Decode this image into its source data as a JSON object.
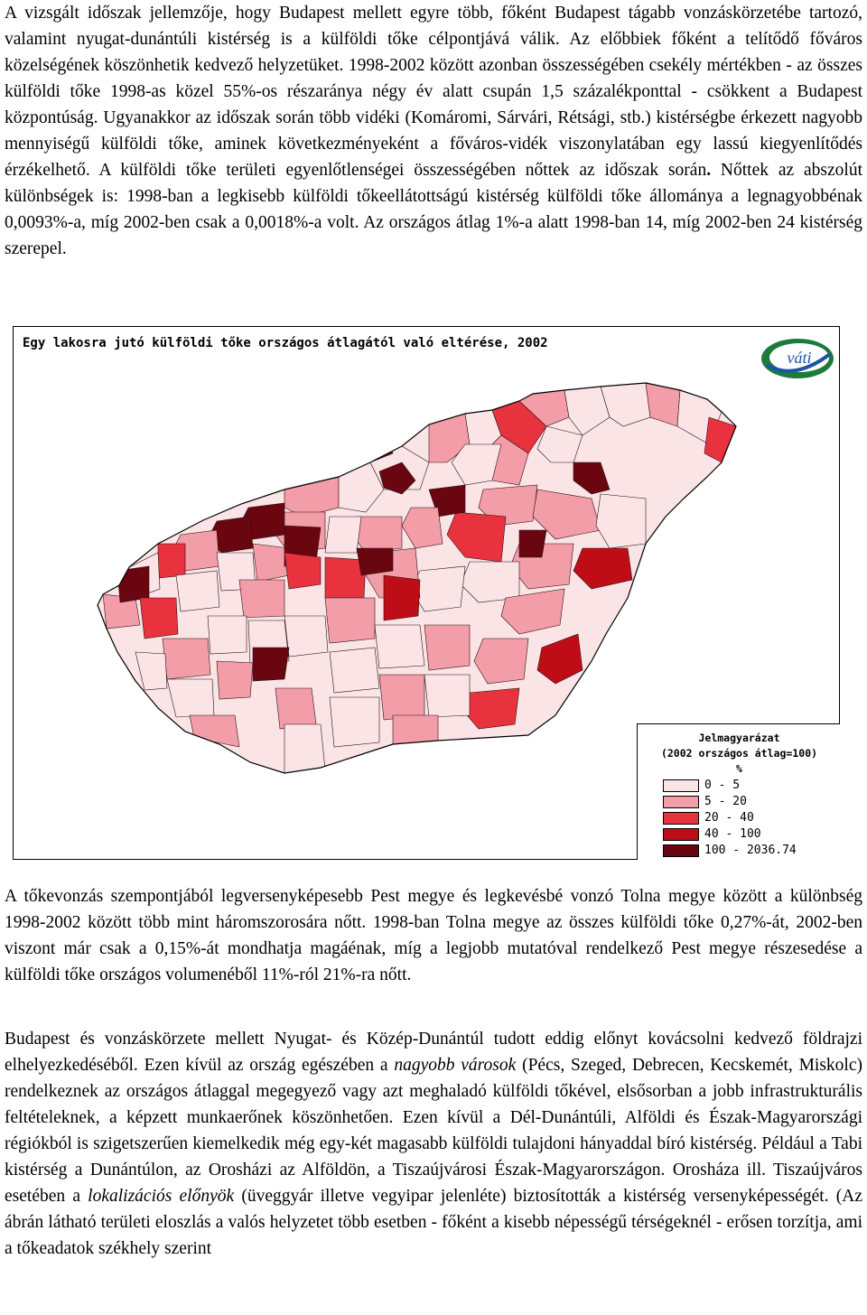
{
  "paragraphs": {
    "p1_a": "A vizsgált időszak jellemzője, hogy Budapest mellett egyre több, főként Budapest tágabb vonzáskörzetébe tartozó, valamint nyugat-dunántúli kistérség is a külföldi tőke célpontjává válik. Az előbbiek főként a telítődő főváros közelségének köszönhetik kedvező helyzetüket. 1998-2002 között azonban összességében csekély mértékben - az összes külföldi tőke 1998-as közel 55%-os részaránya négy év alatt csupán 1,5 százalékponttal - csökkent a Budapest központúság. Ugyanakkor az időszak során több vidéki (Komáromi, Sárvári, Rétsági, stb.) kistérségbe érkezett nagyobb mennyiségű külföldi tőke, aminek következményeként a főváros-vidék viszonylatában egy lassú kiegyenlítődés érzékelhető. A külföldi tőke területi egyenlőtlenségei összességében nőttek az időszak során",
    "p1_bold_dot": ".",
    "p1_b": " Nőttek az abszolút különbségek is: 1998-ban a legkisebb külföldi tőkeellátottságú kistérség külföldi tőke állománya a legnagyobbénak 0,0093%-a, míg 2002-ben csak a 0,0018%-a volt. Az országos átlag 1%-a alatt 1998-ban 14, míg 2002-ben 24 kistérség szerepel.",
    "p2": "A tőkevonzás szempontjából legversenyképesebb Pest megye és legkevésbé vonzó Tolna megye között a különbség 1998-2002 között több mint háromszorosára nőtt. 1998-ban Tolna megye az összes külföldi tőke 0,27%-át, 2002-ben viszont már csak a 0,15%-át mondhatja magáénak, míg a legjobb mutatóval rendelkező Pest megye részesedése a külföldi tőke országos volumenéből 11%-ról 21%-ra nőtt.",
    "p3_a": "Budapest és vonzáskörzete mellett Nyugat- és Közép-Dunántúl tudott eddig előnyt kovácsolni kedvező földrajzi elhelyezkedéséből. Ezen kívül az ország egészében a ",
    "p3_em1": "nagyobb városok",
    "p3_b": " (Pécs, Szeged, Debrecen, Kecskemét, Miskolc) rendelkeznek az országos átlaggal megegyező vagy azt meghaladó külföldi tőkével, elsősorban a jobb infrastrukturális feltételeknek, a képzett munkaerőnek köszönhetően. Ezen kívül a Dél-Dunántúli, Alföldi és Észak-Magyarországi régiókból is szigetszerűen kiemelkedik még egy-két magasabb külföldi tulajdoni hányaddal bíró kistérség. Például a Tabi kistérség a Dunántúlon, az Orosházi az Alföldön, a Tiszaújvárosi Észak-Magyarországon. Orosháza ill. Tiszaújváros esetében a ",
    "p3_em2": "lokalizációs előnyök",
    "p3_c": " (üveggyár illetve vegyipar jelenléte) biztosították a kistérség versenyképességét. (Az ábrán látható területi eloszlás a valós helyzetet több esetben - főként a kisebb népességű térségeknél - erősen torzítja, ami a tőkeadatok székhely szerint"
  },
  "map": {
    "title": "Egy lakosra jutó külföldi tőke országos átlagától való eltérése, 2002",
    "logo_text": "váti",
    "logo_icon": "vati-logo-icon",
    "legend": {
      "title": "Jelmagyarázat",
      "subtitle": "(2002 országos átlag=100)",
      "unit": "%",
      "items": [
        {
          "label": "0 - 5",
          "color": "#fbe4e6"
        },
        {
          "label": "5 - 20",
          "color": "#f29da7"
        },
        {
          "label": "20 - 40",
          "color": "#e8333f"
        },
        {
          "label": "40 - 100",
          "color": "#bf0d18"
        },
        {
          "label": "100 - 2036.74",
          "color": "#6a0610"
        }
      ]
    }
  }
}
